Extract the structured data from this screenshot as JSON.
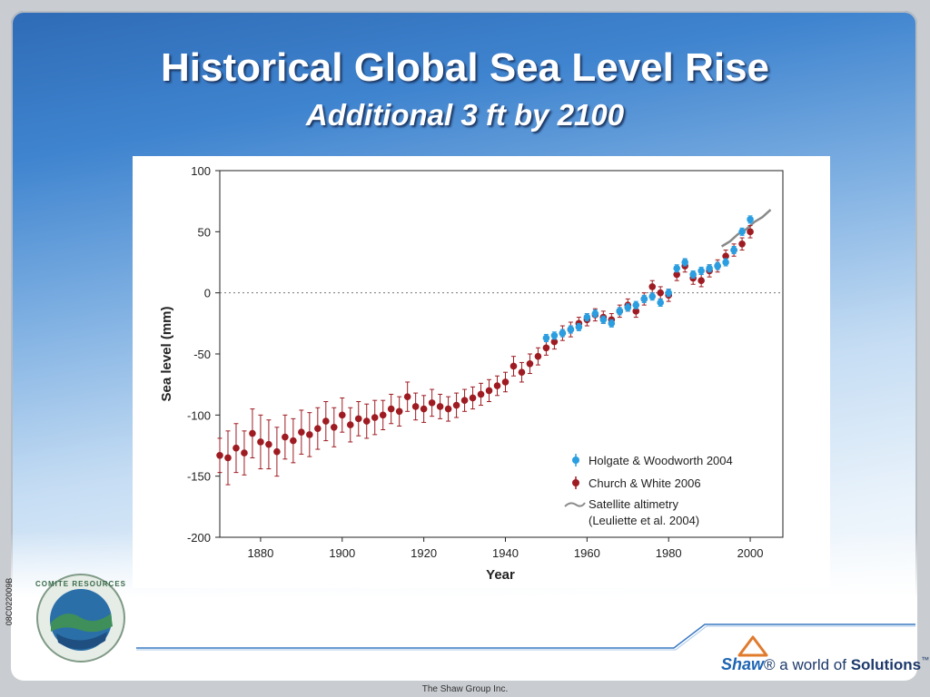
{
  "slide": {
    "title": "Historical Global Sea Level Rise",
    "subtitle": "Additional 3 ft by 2100",
    "side_code": "08C022009B",
    "footer": "The Shaw Group Inc.",
    "brand": {
      "name": "Shaw",
      "tagline_pre": "® a world of ",
      "tagline_bold": "Solutions",
      "tm": "™"
    },
    "logo_text": "COMITE RESOURCES"
  },
  "colors": {
    "church_white": "#9e1b22",
    "holgate": "#2a9ee0",
    "satellite": "#8a8a8a",
    "accent": "#2f6bb6"
  },
  "chart_data": {
    "type": "scatter",
    "title": "",
    "xlabel": "Year",
    "ylabel": "Sea level (mm)",
    "xlim": [
      1870,
      2008
    ],
    "ylim": [
      -200,
      100
    ],
    "xticks": [
      1880,
      1900,
      1920,
      1940,
      1960,
      1980,
      2000
    ],
    "yticks": [
      100,
      50,
      0,
      -50,
      -100,
      -150,
      -200
    ],
    "zero_line": "dotted",
    "legend_position": "bottom-right",
    "series": [
      {
        "name": "Church & White 2006",
        "marker": "circle-errorbar",
        "x": [
          1870,
          1872,
          1874,
          1876,
          1878,
          1880,
          1882,
          1884,
          1886,
          1888,
          1890,
          1892,
          1894,
          1896,
          1898,
          1900,
          1902,
          1904,
          1906,
          1908,
          1910,
          1912,
          1914,
          1916,
          1918,
          1920,
          1922,
          1924,
          1926,
          1928,
          1930,
          1932,
          1934,
          1936,
          1938,
          1940,
          1942,
          1944,
          1946,
          1948,
          1950,
          1952,
          1954,
          1956,
          1958,
          1960,
          1962,
          1964,
          1966,
          1968,
          1970,
          1972,
          1974,
          1976,
          1978,
          1980,
          1982,
          1984,
          1986,
          1988,
          1990,
          1992,
          1994,
          1996,
          1998,
          2000
        ],
        "y": [
          -133,
          -135,
          -127,
          -131,
          -115,
          -122,
          -124,
          -130,
          -118,
          -121,
          -114,
          -116,
          -111,
          -105,
          -110,
          -100,
          -108,
          -103,
          -105,
          -102,
          -100,
          -95,
          -97,
          -85,
          -93,
          -95,
          -90,
          -93,
          -95,
          -92,
          -88,
          -86,
          -83,
          -80,
          -76,
          -73,
          -60,
          -65,
          -58,
          -52,
          -45,
          -40,
          -33,
          -30,
          -25,
          -22,
          -18,
          -20,
          -22,
          -15,
          -10,
          -15,
          -5,
          5,
          0,
          -2,
          15,
          22,
          12,
          10,
          18,
          22,
          30,
          35,
          40,
          50
        ],
        "err": [
          14,
          22,
          20,
          18,
          20,
          22,
          20,
          20,
          18,
          18,
          18,
          18,
          17,
          16,
          16,
          14,
          14,
          14,
          14,
          14,
          12,
          12,
          12,
          12,
          11,
          11,
          11,
          10,
          10,
          10,
          9,
          9,
          9,
          9,
          8,
          8,
          8,
          8,
          8,
          7,
          6,
          6,
          6,
          6,
          5,
          5,
          5,
          5,
          5,
          5,
          5,
          5,
          5,
          5,
          5,
          5,
          5,
          5,
          5,
          5,
          5,
          5,
          5,
          5,
          5,
          5
        ]
      },
      {
        "name": "Holgate & Woodworth 2004",
        "marker": "circle-errorbar",
        "x": [
          1950,
          1952,
          1954,
          1956,
          1958,
          1960,
          1962,
          1964,
          1966,
          1968,
          1970,
          1972,
          1974,
          1976,
          1978,
          1980,
          1982,
          1984,
          1986,
          1988,
          1990,
          1992,
          1994,
          1996,
          1998,
          2000
        ],
        "y": [
          -37,
          -35,
          -33,
          -30,
          -28,
          -20,
          -17,
          -22,
          -25,
          -15,
          -12,
          -10,
          -5,
          -3,
          -8,
          0,
          20,
          25,
          15,
          18,
          20,
          22,
          25,
          35,
          50,
          60
        ],
        "err": [
          3,
          3,
          3,
          3,
          3,
          3,
          3,
          3,
          3,
          3,
          3,
          3,
          3,
          3,
          3,
          3,
          3,
          3,
          3,
          3,
          3,
          3,
          3,
          3,
          3,
          3
        ]
      },
      {
        "name": "Satellite altimetry (Leuliette et al. 2004)",
        "marker": "line",
        "x": [
          1993,
          1995,
          1997,
          1999,
          2001,
          2003,
          2005
        ],
        "y": [
          38,
          42,
          48,
          52,
          58,
          62,
          68
        ]
      }
    ],
    "legend": [
      {
        "label": "Holgate & Woodworth 2004"
      },
      {
        "label": "Church & White 2006"
      },
      {
        "label": "Satellite altimetry"
      },
      {
        "label": "(Leuliette et al. 2004)"
      }
    ]
  }
}
